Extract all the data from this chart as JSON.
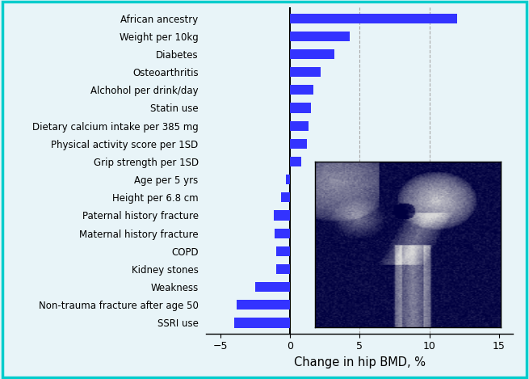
{
  "categories": [
    "SSRI use",
    "Non-trauma fracture after age 50",
    "Weakness",
    "Kidney stones",
    "COPD",
    "Maternal history fracture",
    "Paternal history fracture",
    "Height per 6.8 cm",
    "Age per 5 yrs",
    "Grip strength per 1SD",
    "Physical activity score per 1SD",
    "Dietary calcium intake per 385 mg",
    "Statin use",
    "Alchohol per drink/day",
    "Osteoarthritis",
    "Diabetes",
    "Weight per 10kg",
    "African ancestry"
  ],
  "values": [
    -4.0,
    -3.8,
    -2.5,
    -1.0,
    -1.0,
    -1.1,
    -1.15,
    -0.65,
    -0.3,
    0.8,
    1.2,
    1.3,
    1.5,
    1.7,
    2.2,
    3.2,
    4.3,
    12.0
  ],
  "bar_color": "#3333FF",
  "xlabel": "Change in hip BMD, %",
  "xlim": [
    -6,
    16
  ],
  "xticks": [
    -5,
    0,
    5,
    10,
    15
  ],
  "background_color": "#E8F4F8",
  "border_color": "#00CCCC",
  "grid_color": "#AAAAAA",
  "label_fontsize": 8.5,
  "xlabel_fontsize": 10.5,
  "bar_height": 0.55
}
